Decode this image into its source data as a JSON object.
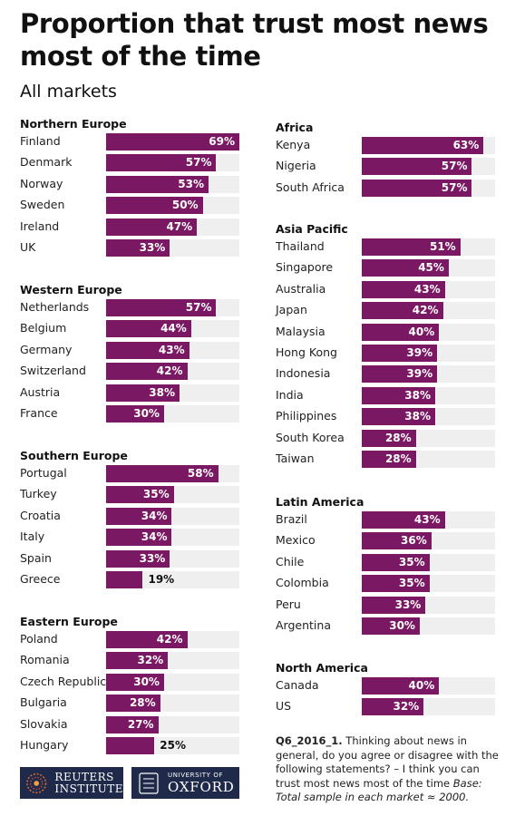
{
  "title": "Proportion that trust most news most of the time",
  "subtitle": "All markets",
  "colors": {
    "bar": "#7b1863",
    "track": "#efefef"
  },
  "chart_data": {
    "type": "bar",
    "orientation": "horizontal",
    "unit": "%",
    "xlim": [
      0,
      100
    ],
    "groups": [
      {
        "name": "Northern Europe",
        "categories": [
          "Finland",
          "Denmark",
          "Norway",
          "Sweden",
          "Ireland",
          "UK"
        ],
        "values": [
          69,
          57,
          53,
          50,
          47,
          33
        ]
      },
      {
        "name": "Western Europe",
        "categories": [
          "Netherlands",
          "Belgium",
          "Germany",
          "Switzerland",
          "Austria",
          "France"
        ],
        "values": [
          57,
          44,
          43,
          42,
          38,
          30
        ]
      },
      {
        "name": "Southern Europe",
        "categories": [
          "Portugal",
          "Turkey",
          "Croatia",
          "Italy",
          "Spain",
          "Greece"
        ],
        "values": [
          58,
          35,
          34,
          34,
          33,
          19
        ]
      },
      {
        "name": "Eastern Europe",
        "categories": [
          "Poland",
          "Romania",
          "Czech Republic",
          "Bulgaria",
          "Slovakia",
          "Hungary"
        ],
        "values": [
          42,
          32,
          30,
          28,
          27,
          25
        ]
      },
      {
        "name": "Africa",
        "categories": [
          "Kenya",
          "Nigeria",
          "South Africa"
        ],
        "values": [
          63,
          57,
          57
        ]
      },
      {
        "name": "Asia Pacific",
        "categories": [
          "Thailand",
          "Singapore",
          "Australia",
          "Japan",
          "Malaysia",
          "Hong Kong",
          "Indonesia",
          "India",
          "Philippines",
          "South Korea",
          "Taiwan"
        ],
        "values": [
          51,
          45,
          43,
          42,
          40,
          39,
          39,
          38,
          38,
          28,
          28
        ]
      },
      {
        "name": "Latin America",
        "categories": [
          "Brazil",
          "Mexico",
          "Chile",
          "Colombia",
          "Peru",
          "Argentina"
        ],
        "values": [
          43,
          36,
          35,
          35,
          33,
          30
        ]
      },
      {
        "name": "North America",
        "categories": [
          "Canada",
          "US"
        ],
        "values": [
          40,
          32
        ]
      }
    ]
  },
  "note": {
    "question": "Q6_2016_1.",
    "text": " Thinking about news in general, do you agree or disagree with the following statements? – I think you can trust most news most of the time ",
    "base": "Base: Total sample in each market ≈ 2000."
  },
  "logos": {
    "reuters": [
      "REUTERS",
      "INSTITUTE"
    ],
    "oxford": [
      "UNIVERSITY OF",
      "OXFORD"
    ]
  }
}
